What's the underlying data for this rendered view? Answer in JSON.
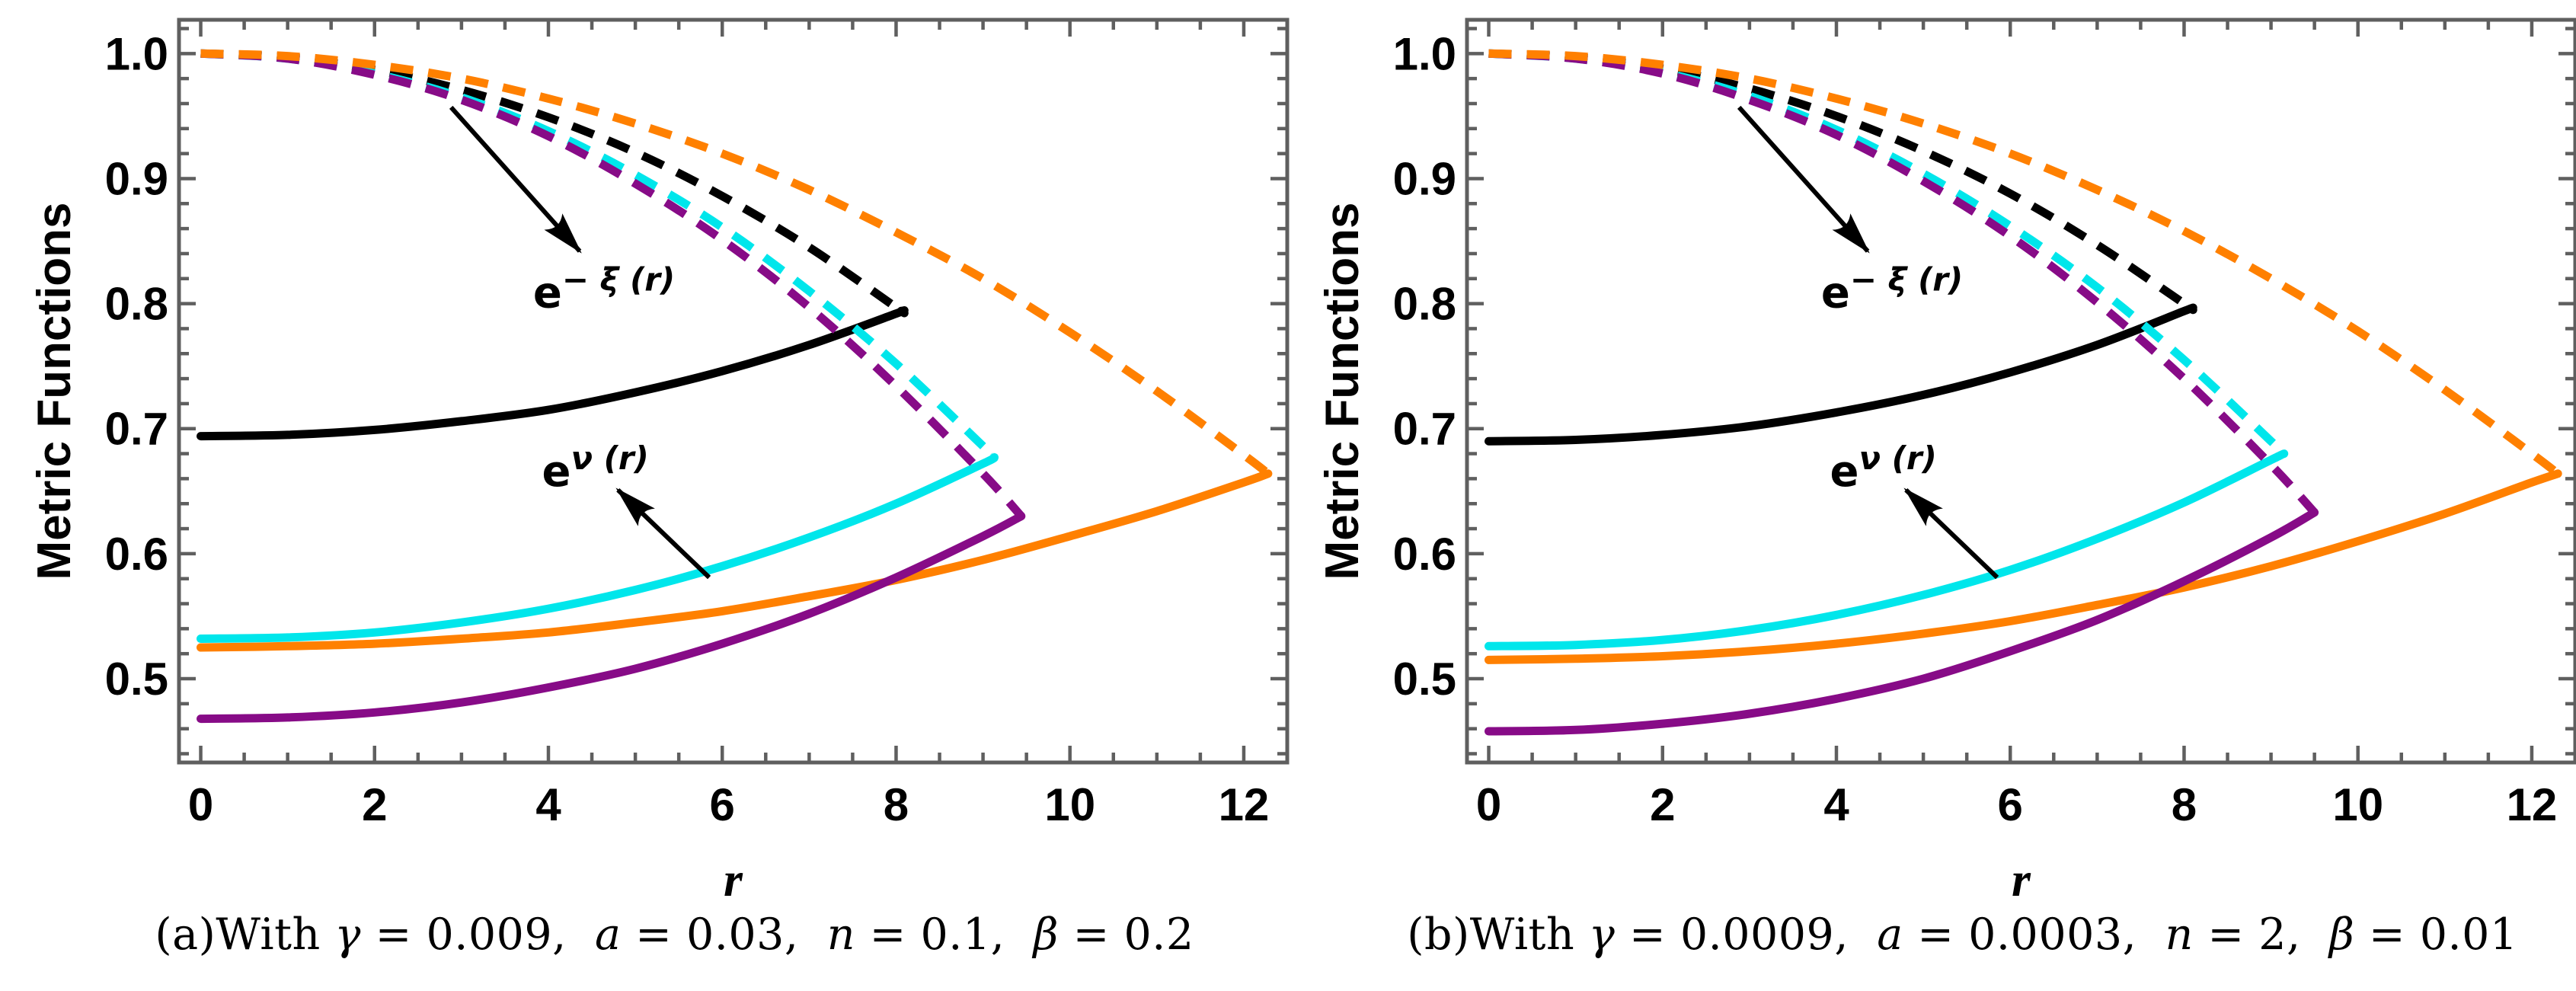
{
  "figure_title": "",
  "panels": [
    {
      "id": "a",
      "chart_index": 0,
      "caption_segments": [
        {
          "text": "(a)With ",
          "italic": false
        },
        {
          "text": "γ",
          "italic": true
        },
        {
          "text": " = 0.009,  ",
          "italic": false
        },
        {
          "text": "a",
          "italic": true
        },
        {
          "text": " = 0.03,  ",
          "italic": false
        },
        {
          "text": "n",
          "italic": true
        },
        {
          "text": " = 0.1,  ",
          "italic": false
        },
        {
          "text": "β",
          "italic": true
        },
        {
          "text": " = 0.2",
          "italic": false
        }
      ]
    },
    {
      "id": "b",
      "chart_index": 1,
      "caption_segments": [
        {
          "text": "(b)With ",
          "italic": false
        },
        {
          "text": "γ",
          "italic": true
        },
        {
          "text": " = 0.0009,  ",
          "italic": false
        },
        {
          "text": "a",
          "italic": true
        },
        {
          "text": " = 0.0003,  ",
          "italic": false
        },
        {
          "text": "n",
          "italic": true
        },
        {
          "text": " = 2,  ",
          "italic": false
        },
        {
          "text": "β",
          "italic": true
        },
        {
          "text": " = 0.01",
          "italic": false
        }
      ]
    }
  ],
  "chart_data": [
    {
      "type": "line",
      "title": "",
      "xlabel": "r",
      "ylabel": "Metric Functions",
      "xlim": [
        -0.25,
        12.5
      ],
      "ylim": [
        0.433,
        1.027
      ],
      "x_major_ticks": [
        0,
        2,
        4,
        6,
        8,
        10,
        12
      ],
      "x_minor_step": 0.5,
      "y_major_ticks": [
        0.5,
        0.6,
        0.7,
        0.8,
        0.9,
        1.0
      ],
      "y_minor_step": 0.02,
      "grid": false,
      "frame": true,
      "legend_position": "none",
      "colors": {
        "frame": "#5f5f5f",
        "tick_label": "#000000",
        "annotation": "#000000"
      },
      "series": [
        {
          "name": "e^nu(r) orange solid",
          "group": "e^ν(r)",
          "color": "#FF8000",
          "style": "solid",
          "points": [
            [
              0,
              0.525
            ],
            [
              1,
              0.526
            ],
            [
              2,
              0.528
            ],
            [
              3,
              0.532
            ],
            [
              4,
              0.537
            ],
            [
              5,
              0.545
            ],
            [
              6,
              0.554
            ],
            [
              7,
              0.566
            ],
            [
              8,
              0.579
            ],
            [
              9,
              0.595
            ],
            [
              10,
              0.614
            ],
            [
              11,
              0.634
            ],
            [
              12,
              0.657
            ],
            [
              12.28,
              0.664
            ]
          ]
        },
        {
          "name": "e^nu(r) black solid",
          "group": "e^ν(r)",
          "color": "#000000",
          "style": "solid",
          "points": [
            [
              0,
              0.694
            ],
            [
              1,
              0.695
            ],
            [
              2,
              0.699
            ],
            [
              3,
              0.706
            ],
            [
              4,
              0.715
            ],
            [
              5,
              0.729
            ],
            [
              6,
              0.746
            ],
            [
              7,
              0.767
            ],
            [
              8,
              0.792
            ],
            [
              8.06,
              0.794
            ]
          ]
        },
        {
          "name": "e^nu(r) cyan solid",
          "group": "e^ν(r)",
          "color": "#00E6EB",
          "style": "solid",
          "points": [
            [
              0,
              0.532
            ],
            [
              1,
              0.533
            ],
            [
              2,
              0.537
            ],
            [
              3,
              0.545
            ],
            [
              4,
              0.556
            ],
            [
              5,
              0.571
            ],
            [
              6,
              0.59
            ],
            [
              7,
              0.613
            ],
            [
              8,
              0.64
            ],
            [
              9,
              0.672
            ],
            [
              9.13,
              0.677
            ]
          ]
        },
        {
          "name": "e^nu(r) purple solid",
          "group": "e^ν(r)",
          "color": "#870B87",
          "style": "solid",
          "points": [
            [
              0,
              0.468
            ],
            [
              1,
              0.469
            ],
            [
              2,
              0.473
            ],
            [
              3,
              0.481
            ],
            [
              4,
              0.493
            ],
            [
              5,
              0.508
            ],
            [
              6,
              0.528
            ],
            [
              7,
              0.552
            ],
            [
              8,
              0.581
            ],
            [
              9,
              0.614
            ],
            [
              9.44,
              0.63
            ]
          ]
        },
        {
          "name": "e^-xi(r) black dashed",
          "group": "e^-ξ(r)",
          "color": "#000000",
          "style": "dashed",
          "points": [
            [
              0,
              1.0
            ],
            [
              1,
              0.997
            ],
            [
              2,
              0.987
            ],
            [
              3,
              0.971
            ],
            [
              4,
              0.949
            ],
            [
              5,
              0.921
            ],
            [
              6,
              0.886
            ],
            [
              7,
              0.845
            ],
            [
              8,
              0.797
            ],
            [
              8.06,
              0.794
            ]
          ]
        },
        {
          "name": "e^-xi(r) cyan dashed",
          "group": "e^-ξ(r)",
          "color": "#00E6EB",
          "style": "dashed",
          "points": [
            [
              0,
              1.0
            ],
            [
              1,
              0.996
            ],
            [
              2,
              0.984
            ],
            [
              3,
              0.965
            ],
            [
              4,
              0.938
            ],
            [
              5,
              0.903
            ],
            [
              6,
              0.861
            ],
            [
              7,
              0.81
            ],
            [
              8,
              0.752
            ],
            [
              9,
              0.686
            ],
            [
              9.13,
              0.677
            ]
          ]
        },
        {
          "name": "e^-xi(r) purple dashed",
          "group": "e^-ξ(r)",
          "color": "#870B87",
          "style": "dashed",
          "points": [
            [
              0,
              1.0
            ],
            [
              1,
              0.996
            ],
            [
              2,
              0.983
            ],
            [
              3,
              0.963
            ],
            [
              4,
              0.934
            ],
            [
              5,
              0.896
            ],
            [
              6,
              0.851
            ],
            [
              7,
              0.797
            ],
            [
              8,
              0.734
            ],
            [
              9,
              0.664
            ],
            [
              9.44,
              0.63
            ]
          ]
        },
        {
          "name": "e^-xi(r) orange dashed",
          "group": "e^-ξ(r)",
          "color": "#FF8000",
          "style": "dashed",
          "points": [
            [
              0,
              1.0
            ],
            [
              1,
              0.998
            ],
            [
              2,
              0.991
            ],
            [
              3,
              0.98
            ],
            [
              4,
              0.964
            ],
            [
              5,
              0.944
            ],
            [
              6,
              0.92
            ],
            [
              7,
              0.891
            ],
            [
              8,
              0.857
            ],
            [
              9,
              0.82
            ],
            [
              10,
              0.777
            ],
            [
              11,
              0.73
            ],
            [
              12,
              0.679
            ],
            [
              12.28,
              0.664
            ]
          ]
        }
      ],
      "annotations": [
        {
          "name": "e-minus-xi",
          "base": "e",
          "sup": "− ξ (r)",
          "label_at": [
            4.64,
            0.797
          ],
          "arrow_from": [
            2.88,
            0.957
          ],
          "arrow_to": [
            4.36,
            0.842
          ]
        },
        {
          "name": "e-nu",
          "base": "e",
          "sup": "ν (r)",
          "label_at": [
            4.54,
            0.654
          ],
          "arrow_from": [
            5.85,
            0.581
          ],
          "arrow_to": [
            4.8,
            0.651
          ]
        }
      ]
    },
    {
      "type": "line",
      "title": "",
      "xlabel": "r",
      "ylabel": "Metric Functions",
      "xlim": [
        -0.25,
        12.5
      ],
      "ylim": [
        0.433,
        1.027
      ],
      "x_major_ticks": [
        0,
        2,
        4,
        6,
        8,
        10,
        12
      ],
      "x_minor_step": 0.5,
      "y_major_ticks": [
        0.5,
        0.6,
        0.7,
        0.8,
        0.9,
        1.0
      ],
      "y_minor_step": 0.02,
      "grid": false,
      "frame": true,
      "legend_position": "none",
      "colors": {
        "frame": "#5f5f5f",
        "tick_label": "#000000",
        "annotation": "#000000"
      },
      "series": [
        {
          "name": "e^nu(r) orange solid",
          "group": "e^ν(r)",
          "color": "#FF8000",
          "style": "solid",
          "points": [
            [
              0,
              0.515
            ],
            [
              1,
              0.516
            ],
            [
              2,
              0.518
            ],
            [
              3,
              0.522
            ],
            [
              4,
              0.528
            ],
            [
              5,
              0.536
            ],
            [
              6,
              0.546
            ],
            [
              7,
              0.559
            ],
            [
              8,
              0.573
            ],
            [
              9,
              0.59
            ],
            [
              10,
              0.61
            ],
            [
              11,
              0.632
            ],
            [
              12,
              0.657
            ],
            [
              12.3,
              0.664
            ]
          ]
        },
        {
          "name": "e^nu(r) black solid",
          "group": "e^ν(r)",
          "color": "#000000",
          "style": "solid",
          "points": [
            [
              0,
              0.69
            ],
            [
              1,
              0.691
            ],
            [
              2,
              0.695
            ],
            [
              3,
              0.702
            ],
            [
              4,
              0.713
            ],
            [
              5,
              0.727
            ],
            [
              6,
              0.745
            ],
            [
              7,
              0.767
            ],
            [
              8,
              0.794
            ],
            [
              8.08,
              0.796
            ]
          ]
        },
        {
          "name": "e^nu(r) cyan solid",
          "group": "e^ν(r)",
          "color": "#00E6EB",
          "style": "solid",
          "points": [
            [
              0,
              0.526
            ],
            [
              1,
              0.527
            ],
            [
              2,
              0.531
            ],
            [
              3,
              0.539
            ],
            [
              4,
              0.551
            ],
            [
              5,
              0.567
            ],
            [
              6,
              0.587
            ],
            [
              7,
              0.612
            ],
            [
              8,
              0.641
            ],
            [
              9,
              0.675
            ],
            [
              9.15,
              0.68
            ]
          ]
        },
        {
          "name": "e^nu(r) purple solid",
          "group": "e^ν(r)",
          "color": "#870B87",
          "style": "solid",
          "points": [
            [
              0,
              0.458
            ],
            [
              1,
              0.459
            ],
            [
              2,
              0.464
            ],
            [
              3,
              0.472
            ],
            [
              4,
              0.484
            ],
            [
              5,
              0.5
            ],
            [
              6,
              0.522
            ],
            [
              7,
              0.547
            ],
            [
              8,
              0.578
            ],
            [
              9,
              0.613
            ],
            [
              9.5,
              0.633
            ]
          ]
        },
        {
          "name": "e^-xi(r) black dashed",
          "group": "e^-ξ(r)",
          "color": "#000000",
          "style": "dashed",
          "points": [
            [
              0,
              1.0
            ],
            [
              1,
              0.997
            ],
            [
              2,
              0.988
            ],
            [
              3,
              0.972
            ],
            [
              4,
              0.95
            ],
            [
              5,
              0.922
            ],
            [
              6,
              0.888
            ],
            [
              7,
              0.847
            ],
            [
              8,
              0.8
            ],
            [
              8.08,
              0.796
            ]
          ]
        },
        {
          "name": "e^-xi(r) cyan dashed",
          "group": "e^-ξ(r)",
          "color": "#00E6EB",
          "style": "dashed",
          "points": [
            [
              0,
              1.0
            ],
            [
              1,
              0.996
            ],
            [
              2,
              0.985
            ],
            [
              3,
              0.966
            ],
            [
              4,
              0.939
            ],
            [
              5,
              0.904
            ],
            [
              6,
              0.862
            ],
            [
              7,
              0.813
            ],
            [
              8,
              0.755
            ],
            [
              9,
              0.69
            ],
            [
              9.15,
              0.68
            ]
          ]
        },
        {
          "name": "e^-xi(r) purple dashed",
          "group": "e^-ξ(r)",
          "color": "#870B87",
          "style": "dashed",
          "points": [
            [
              0,
              1.0
            ],
            [
              1,
              0.996
            ],
            [
              2,
              0.984
            ],
            [
              3,
              0.963
            ],
            [
              4,
              0.935
            ],
            [
              5,
              0.898
            ],
            [
              6,
              0.854
            ],
            [
              7,
              0.801
            ],
            [
              8,
              0.74
            ],
            [
              9,
              0.671
            ],
            [
              9.5,
              0.633
            ]
          ]
        },
        {
          "name": "e^-xi(r) orange dashed",
          "group": "e^-ξ(r)",
          "color": "#FF8000",
          "style": "dashed",
          "points": [
            [
              0,
              1.0
            ],
            [
              1,
              0.998
            ],
            [
              2,
              0.991
            ],
            [
              3,
              0.98
            ],
            [
              4,
              0.964
            ],
            [
              5,
              0.944
            ],
            [
              6,
              0.92
            ],
            [
              7,
              0.891
            ],
            [
              8,
              0.858
            ],
            [
              9,
              0.82
            ],
            [
              10,
              0.778
            ],
            [
              11,
              0.731
            ],
            [
              12,
              0.68
            ],
            [
              12.3,
              0.664
            ]
          ]
        }
      ],
      "annotations": [
        {
          "name": "e-minus-xi",
          "base": "e",
          "sup": "− ξ (r)",
          "label_at": [
            4.64,
            0.797
          ],
          "arrow_from": [
            2.88,
            0.957
          ],
          "arrow_to": [
            4.36,
            0.842
          ]
        },
        {
          "name": "e-nu",
          "base": "e",
          "sup": "ν (r)",
          "label_at": [
            4.54,
            0.654
          ],
          "arrow_from": [
            5.85,
            0.581
          ],
          "arrow_to": [
            4.8,
            0.651
          ]
        }
      ]
    }
  ]
}
